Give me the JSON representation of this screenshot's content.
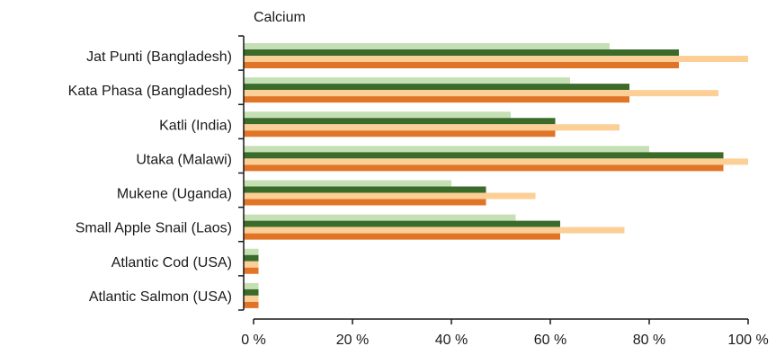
{
  "chart_data": {
    "type": "bar",
    "orientation": "horizontal",
    "title": "Calcium",
    "xlabel": "",
    "ylabel": "",
    "xlim": [
      0,
      100
    ],
    "x_ticks": [
      "0 %",
      "20 %",
      "40 %",
      "60 %",
      "80 %",
      "100 %"
    ],
    "x_tick_values": [
      0,
      20,
      40,
      60,
      80,
      100
    ],
    "grid": false,
    "legend": "none",
    "categories": [
      "Jat Punti (Bangladesh)",
      "Kata Phasa (Bangladesh)",
      "Katli (India)",
      "Utaka (Malawi)",
      "Mukene (Uganda)",
      "Small Apple Snail (Laos)",
      "Atlantic Cod (USA)",
      "Atlantic Salmon (USA)"
    ],
    "series": [
      {
        "color": "#c5e0b4",
        "values": [
          72,
          64,
          52,
          80,
          40,
          53,
          1,
          1
        ]
      },
      {
        "color": "#3b6b2a",
        "values": [
          86,
          76,
          61,
          95,
          47,
          62,
          1,
          1
        ]
      },
      {
        "color": "#fccf96",
        "values": [
          100,
          94,
          74,
          100,
          57,
          75,
          1,
          1
        ]
      },
      {
        "color": "#e07528",
        "values": [
          86,
          76,
          61,
          95,
          47,
          62,
          1,
          1
        ]
      }
    ]
  }
}
